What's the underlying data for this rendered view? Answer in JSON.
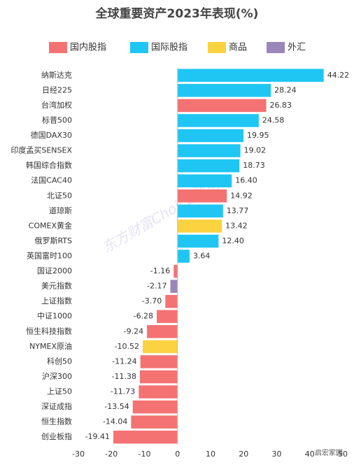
{
  "chart_data": {
    "type": "barh",
    "title": "全球重要资产2023年表现(%)",
    "categories": [
      "纳斯达克",
      "日经225",
      "台湾加权",
      "标普500",
      "德国DAX30",
      "印度孟买SENSEX",
      "韩国综合指数",
      "法国CAC40",
      "北证50",
      "道琼斯",
      "COMEX黄金",
      "俄罗斯RTS",
      "英国富时100",
      "国证2000",
      "美元指数",
      "上证指数",
      "中证1000",
      "恒生科技指数",
      "NYMEX原油",
      "科创50",
      "沪深300",
      "上证50",
      "深证成指",
      "恒生指数",
      "创业板指"
    ],
    "series": [
      {
        "name": "国内股指",
        "color": "#f47272",
        "values": [
          null,
          null,
          26.83,
          null,
          null,
          null,
          null,
          null,
          14.92,
          null,
          null,
          null,
          null,
          -1.16,
          null,
          -3.7,
          -6.28,
          -9.24,
          null,
          -11.24,
          -11.38,
          -11.73,
          -13.54,
          -14.04,
          -19.41
        ],
        "value_labels": [
          null,
          null,
          "26.83",
          null,
          null,
          null,
          null,
          null,
          "14.92",
          null,
          null,
          null,
          null,
          "-1.16",
          null,
          "-3.70",
          "-6.28",
          "-9.24",
          null,
          "-11.24",
          "-11.38",
          "-11.73",
          "-13.54",
          "-14.04",
          "-19.41"
        ]
      },
      {
        "name": "国际股指",
        "color": "#1fc6f4",
        "values": [
          44.22,
          28.24,
          null,
          24.58,
          19.95,
          19.02,
          18.73,
          16.4,
          null,
          13.77,
          null,
          12.4,
          3.64,
          null,
          null,
          null,
          null,
          null,
          null,
          null,
          null,
          null,
          null,
          null,
          null
        ],
        "value_labels": [
          "44.22",
          "28.24",
          null,
          "24.58",
          "19.95",
          "19.02",
          "18.73",
          "16.40",
          null,
          "13.77",
          null,
          "12.40",
          "3.64",
          null,
          null,
          null,
          null,
          null,
          null,
          null,
          null,
          null,
          null,
          null,
          null
        ]
      },
      {
        "name": "商品",
        "color": "#fbd240",
        "values": [
          null,
          null,
          null,
          null,
          null,
          null,
          null,
          null,
          null,
          null,
          13.42,
          null,
          null,
          null,
          null,
          null,
          null,
          null,
          -10.52,
          null,
          null,
          null,
          null,
          null,
          null
        ],
        "value_labels": [
          null,
          null,
          null,
          null,
          null,
          null,
          null,
          null,
          null,
          null,
          "13.42",
          null,
          null,
          null,
          null,
          null,
          null,
          null,
          "-10.52",
          null,
          null,
          null,
          null,
          null,
          null
        ]
      },
      {
        "name": "外汇",
        "color": "#9a86b8",
        "values": [
          null,
          null,
          null,
          null,
          null,
          null,
          null,
          null,
          null,
          null,
          null,
          null,
          null,
          null,
          -2.17,
          null,
          null,
          null,
          null,
          null,
          null,
          null,
          null,
          null,
          null
        ],
        "value_labels": [
          null,
          null,
          null,
          null,
          null,
          null,
          null,
          null,
          null,
          null,
          null,
          null,
          null,
          null,
          "-2.17",
          null,
          null,
          null,
          null,
          null,
          null,
          null,
          null,
          null,
          null
        ]
      }
    ],
    "xlim": [
      -30,
      50
    ],
    "xticks": [
      -30,
      -20,
      -10,
      0,
      10,
      20,
      30,
      40,
      50
    ],
    "grid": false,
    "watermark": "东方财富Choice数据",
    "source": "启宏家园"
  }
}
